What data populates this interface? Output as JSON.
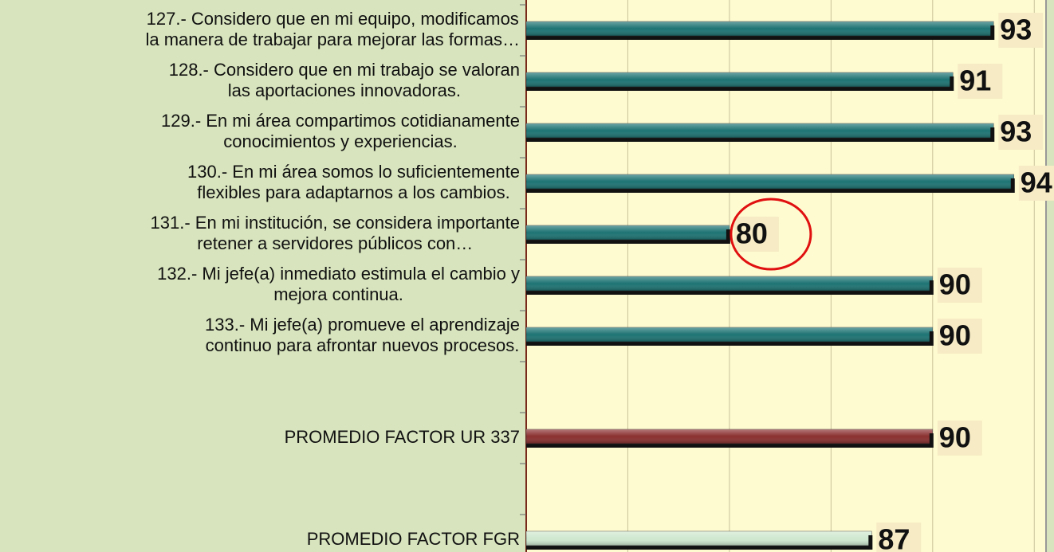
{
  "chart_data": {
    "type": "barh",
    "categories": [
      "127.- Considero que en mi equipo, modificamos\nla manera de trabajar para mejorar las formas…",
      "128.- Considero que en mi trabajo se valoran\nlas aportaciones innovadoras.",
      "129.- En mi área compartimos cotidianamente\nconocimientos y experiencias.",
      "130.- En mi área somos lo suficientemente\nflexibles para adaptarnos a los cambios.",
      "131.- En mi institución, se considera importante\nretener a servidores públicos con…",
      "132.- Mi jefe(a) inmediato estimula el cambio y\nmejora continua.",
      "133.- Mi jefe(a) promueve el aprendizaje\ncontinuo para afrontar nuevos procesos.",
      null,
      "PROMEDIO FACTOR UR 337",
      null,
      "PROMEDIO FACTOR FGR"
    ],
    "values": [
      93,
      91,
      93,
      94,
      80,
      90,
      90,
      null,
      90,
      null,
      87
    ],
    "colors": [
      "#1d7373",
      "#1d7373",
      "#1d7373",
      "#1d7373",
      "#1d7373",
      "#1d7373",
      "#1d7373",
      null,
      "#8a2f2f",
      null,
      "#cfe8cf"
    ],
    "xlim": [
      70,
      95.5
    ],
    "xticks": [
      75,
      80,
      85,
      90,
      95
    ],
    "grid": true
  }
}
